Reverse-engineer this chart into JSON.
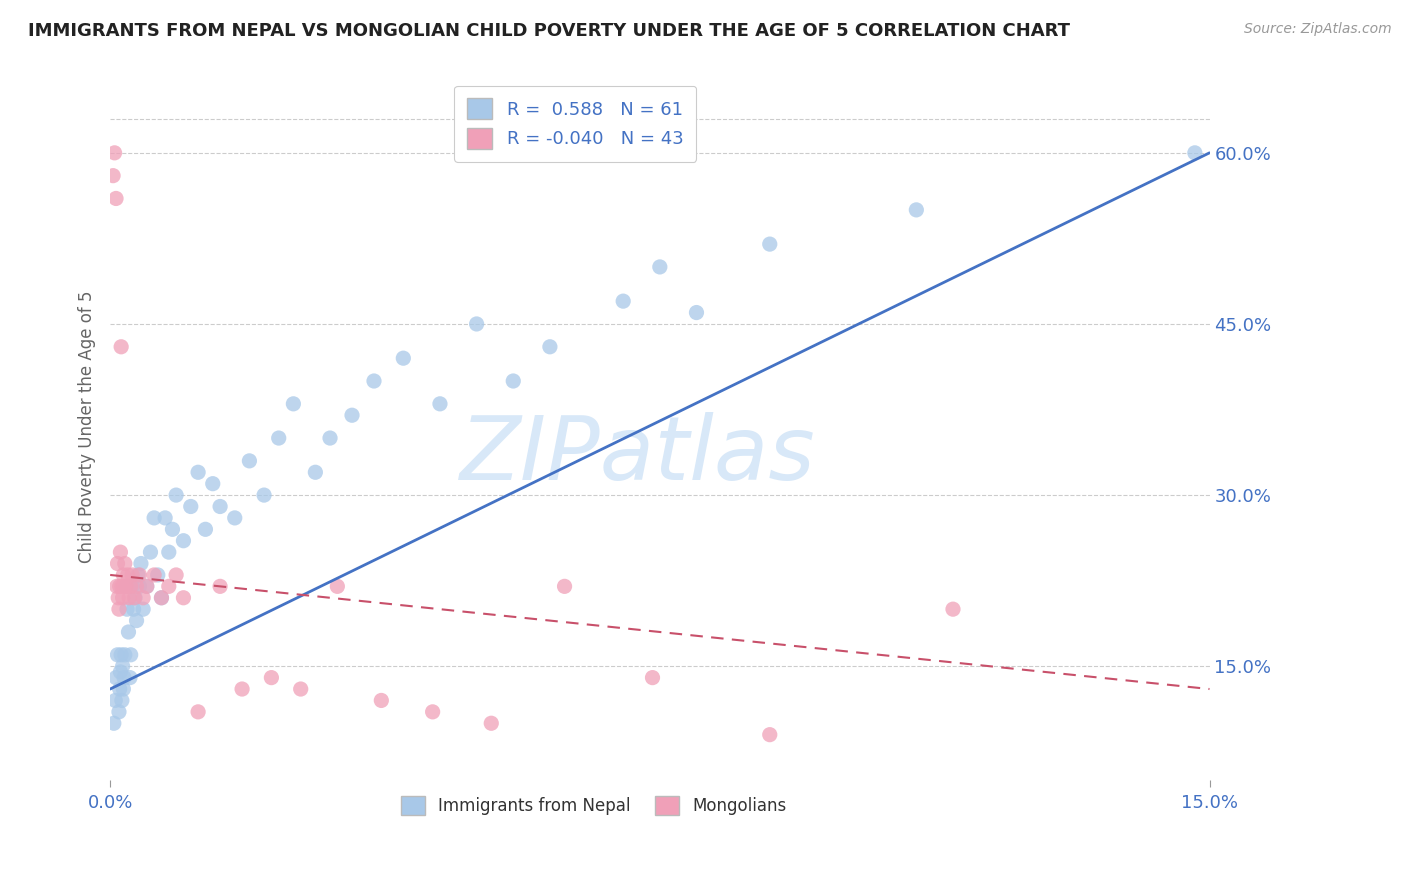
{
  "title": "IMMIGRANTS FROM NEPAL VS MONGOLIAN CHILD POVERTY UNDER THE AGE OF 5 CORRELATION CHART",
  "source": "Source: ZipAtlas.com",
  "ylabel": "Child Poverty Under the Age of 5",
  "series1_name": "Immigrants from Nepal",
  "series2_name": "Mongolians",
  "series1_color": "#a8c8e8",
  "series2_color": "#f0a0b8",
  "trendline1_color": "#4472c4",
  "trendline2_color": "#c8506a",
  "watermark": "ZIPatlas",
  "watermark_color": "#d8e8f8",
  "background_color": "#ffffff",
  "R1": 0.588,
  "N1": 61,
  "R2": -0.04,
  "N2": 43,
  "xlim": [
    0.0,
    15.0
  ],
  "ylim": [
    5.0,
    67.0
  ],
  "yticks": [
    15.0,
    30.0,
    45.0,
    60.0
  ],
  "xticks": [
    0.0,
    15.0
  ],
  "trend1_x": [
    0.0,
    15.0
  ],
  "trend1_y": [
    13.0,
    60.0
  ],
  "trend2_x": [
    0.0,
    15.0
  ],
  "trend2_y": [
    23.0,
    13.0
  ],
  "nepal_x": [
    0.05,
    0.07,
    0.08,
    0.1,
    0.12,
    0.13,
    0.14,
    0.15,
    0.16,
    0.17,
    0.18,
    0.19,
    0.2,
    0.22,
    0.23,
    0.25,
    0.27,
    0.28,
    0.3,
    0.32,
    0.34,
    0.36,
    0.38,
    0.4,
    0.42,
    0.45,
    0.5,
    0.55,
    0.6,
    0.65,
    0.7,
    0.75,
    0.8,
    0.85,
    0.9,
    1.0,
    1.1,
    1.2,
    1.3,
    1.4,
    1.5,
    1.7,
    1.9,
    2.1,
    2.3,
    2.5,
    2.8,
    3.0,
    3.3,
    3.6,
    4.0,
    4.5,
    5.0,
    5.5,
    6.0,
    7.0,
    7.5,
    8.0,
    9.0,
    11.0,
    14.8
  ],
  "nepal_y": [
    10.0,
    12.0,
    14.0,
    16.0,
    11.0,
    13.0,
    14.5,
    16.0,
    12.0,
    15.0,
    13.0,
    14.0,
    16.0,
    22.0,
    20.0,
    18.0,
    14.0,
    16.0,
    22.0,
    20.0,
    21.0,
    19.0,
    23.0,
    22.0,
    24.0,
    20.0,
    22.0,
    25.0,
    28.0,
    23.0,
    21.0,
    28.0,
    25.0,
    27.0,
    30.0,
    26.0,
    29.0,
    32.0,
    27.0,
    31.0,
    29.0,
    28.0,
    33.0,
    30.0,
    35.0,
    38.0,
    32.0,
    35.0,
    37.0,
    40.0,
    42.0,
    38.0,
    45.0,
    40.0,
    43.0,
    47.0,
    50.0,
    46.0,
    52.0,
    55.0,
    60.0
  ],
  "mongol_x": [
    0.04,
    0.06,
    0.08,
    0.09,
    0.1,
    0.11,
    0.12,
    0.13,
    0.14,
    0.15,
    0.16,
    0.17,
    0.18,
    0.19,
    0.2,
    0.22,
    0.24,
    0.26,
    0.28,
    0.3,
    0.33,
    0.36,
    0.4,
    0.45,
    0.5,
    0.6,
    0.7,
    0.8,
    0.9,
    1.0,
    1.2,
    1.5,
    1.8,
    2.2,
    2.6,
    3.1,
    3.7,
    4.4,
    5.2,
    6.2,
    7.4,
    9.0,
    11.5
  ],
  "mongol_y": [
    58.0,
    60.0,
    56.0,
    22.0,
    24.0,
    21.0,
    20.0,
    22.0,
    25.0,
    43.0,
    22.0,
    21.0,
    23.0,
    22.0,
    24.0,
    22.0,
    23.0,
    21.0,
    22.0,
    23.0,
    21.0,
    22.0,
    23.0,
    21.0,
    22.0,
    23.0,
    21.0,
    22.0,
    23.0,
    21.0,
    11.0,
    22.0,
    13.0,
    14.0,
    13.0,
    22.0,
    12.0,
    11.0,
    10.0,
    22.0,
    14.0,
    9.0,
    20.0
  ]
}
